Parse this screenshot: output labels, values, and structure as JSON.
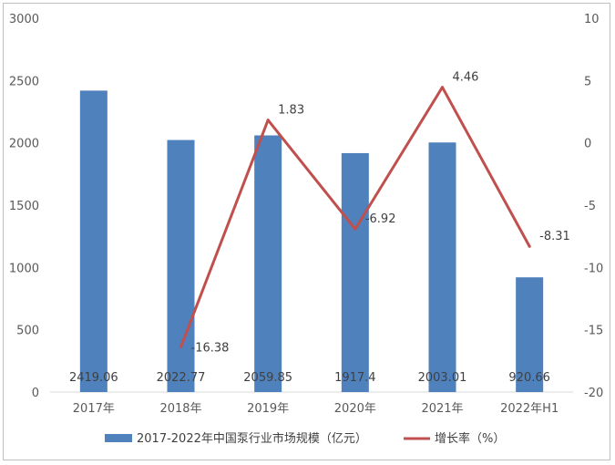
{
  "chart_data": {
    "type": "bar",
    "categories": [
      "2017年",
      "2018年",
      "2019年",
      "2020年",
      "2021年",
      "2022年H1"
    ],
    "series": [
      {
        "name": "2017-2022年中国泵行业市场规模（亿元）",
        "type": "bar",
        "axis": "left",
        "values": [
          2419.06,
          2022.77,
          2059.85,
          1917.4,
          2003.01,
          920.66
        ],
        "labels": [
          "2419.06",
          "2022.77",
          "2059.85",
          "1917.4",
          "2003.01",
          "920.66"
        ],
        "color": "#4f81bd"
      },
      {
        "name": "增长率（%）",
        "type": "line",
        "axis": "right",
        "values": [
          null,
          -16.38,
          1.83,
          -6.92,
          4.46,
          -8.31
        ],
        "labels": [
          "",
          "-16.38",
          "1.83",
          "-6.92",
          "4.46",
          "-8.31"
        ],
        "color": "#c0504d"
      }
    ],
    "y_left": {
      "min": 0,
      "max": 3000,
      "ticks": [
        0,
        500,
        1000,
        1500,
        2000,
        2500,
        3000
      ]
    },
    "y_right": {
      "min": -20,
      "max": 10,
      "ticks": [
        -20,
        -15,
        -10,
        -5,
        0,
        5,
        10
      ]
    },
    "grid": false,
    "legend_position": "bottom"
  }
}
